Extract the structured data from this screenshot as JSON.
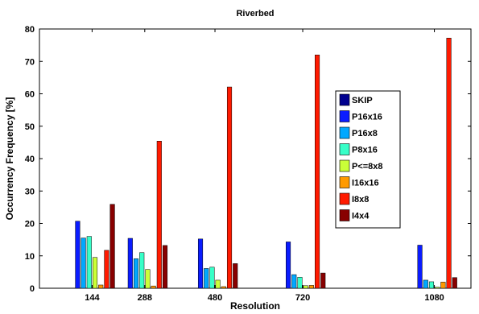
{
  "chart_data": {
    "type": "bar",
    "title": "Riverbed",
    "xlabel": "Resolution",
    "ylabel": "Occurrency Frequency [%]",
    "categories": [
      "144",
      "288",
      "480",
      "720",
      "1080"
    ],
    "x": [
      144,
      288,
      480,
      720,
      1080
    ],
    "x_scale": "linear",
    "xlim": [
      0,
      1180
    ],
    "ylim": [
      0,
      80
    ],
    "yticks": [
      0,
      10,
      20,
      30,
      40,
      50,
      60,
      70,
      80
    ],
    "grid": false,
    "legend_position": "right-center",
    "series": [
      {
        "name": "SKIP",
        "color": "#00008f",
        "values": [
          0,
          0,
          0,
          0,
          0
        ]
      },
      {
        "name": "P16x16",
        "color": "#0a1cff",
        "values": [
          20.7,
          15.4,
          15.2,
          14.3,
          13.3
        ]
      },
      {
        "name": "P16x8",
        "color": "#00a8ff",
        "values": [
          15.5,
          9.1,
          6.1,
          4.2,
          2.5
        ]
      },
      {
        "name": "P8x16",
        "color": "#38ffc8",
        "values": [
          16.0,
          11.0,
          6.5,
          3.4,
          2.0
        ]
      },
      {
        "name": "P<=8x8",
        "color": "#caff38",
        "values": [
          9.5,
          5.8,
          2.5,
          0.8,
          0.3
        ]
      },
      {
        "name": "I16x16",
        "color": "#ff9a00",
        "values": [
          1.0,
          0.7,
          0.5,
          0.9,
          1.9
        ]
      },
      {
        "name": "I8x8",
        "color": "#ff1a00",
        "values": [
          11.7,
          45.4,
          62.1,
          72.0,
          77.2
        ]
      },
      {
        "name": "I4x4",
        "color": "#880000",
        "values": [
          25.9,
          13.2,
          7.6,
          4.7,
          3.3
        ]
      }
    ]
  }
}
